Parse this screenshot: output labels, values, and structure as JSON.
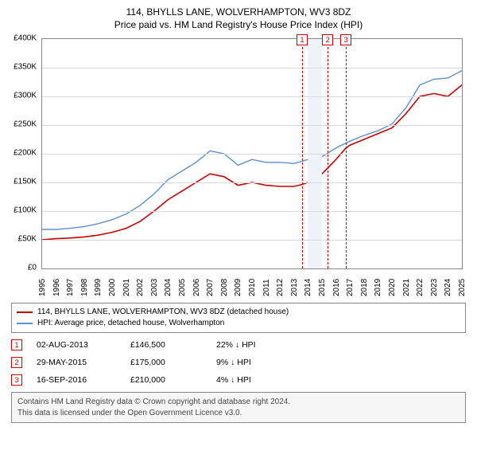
{
  "title": {
    "line1": "114, BHYLLS LANE, WOLVERHAMPTON, WV3 8DZ",
    "line2": "Price paid vs. HM Land Registry's House Price Index (HPI)"
  },
  "chart": {
    "type": "line",
    "background_color": "#ffffff",
    "grid_color": "#d9d9d9",
    "border_color": "#888888",
    "x": {
      "min": 1995,
      "max": 2025,
      "tick_step": 1,
      "label_fontsize": 10
    },
    "y": {
      "min": 0,
      "max": 400000,
      "tick_step": 50000,
      "label_prefix": "£",
      "label_suffix": "K",
      "label_fontsize": 10
    },
    "year_band": {
      "start": 2014,
      "end": 2015,
      "fill": "#eef3fa"
    },
    "event_markers": [
      {
        "id": "1",
        "year": 2013.58
      },
      {
        "id": "2",
        "year": 2015.41
      },
      {
        "id": "3",
        "year": 2016.71
      }
    ],
    "marker_style": {
      "border_color": "#cc0000",
      "text_color": "#cc0000",
      "dash_color": "#cc0000"
    },
    "series": [
      {
        "name": "price_paid",
        "label": "114, BHYLLS LANE, WOLVERHAMPTON, WV3 8DZ (detached house)",
        "color": "#cc0000",
        "line_width": 1.6,
        "points": [
          [
            1995,
            50000
          ],
          [
            1996,
            52000
          ],
          [
            1997,
            53000
          ],
          [
            1998,
            55000
          ],
          [
            1999,
            58000
          ],
          [
            2000,
            63000
          ],
          [
            2001,
            70000
          ],
          [
            2002,
            82000
          ],
          [
            2003,
            100000
          ],
          [
            2004,
            120000
          ],
          [
            2005,
            135000
          ],
          [
            2006,
            150000
          ],
          [
            2007,
            165000
          ],
          [
            2008,
            160000
          ],
          [
            2009,
            145000
          ],
          [
            2010,
            150000
          ],
          [
            2011,
            145000
          ],
          [
            2012,
            143000
          ],
          [
            2013,
            143000
          ],
          [
            2013.58,
            146500
          ],
          [
            2014,
            150000
          ],
          [
            2015,
            165000
          ],
          [
            2015.41,
            175000
          ],
          [
            2016,
            190000
          ],
          [
            2016.71,
            210000
          ],
          [
            2017,
            215000
          ],
          [
            2018,
            225000
          ],
          [
            2019,
            235000
          ],
          [
            2020,
            245000
          ],
          [
            2021,
            270000
          ],
          [
            2022,
            300000
          ],
          [
            2023,
            305000
          ],
          [
            2024,
            300000
          ],
          [
            2025,
            320000
          ]
        ]
      },
      {
        "name": "hpi",
        "label": "HPI: Average price, detached house, Wolverhampton",
        "color": "#5b8fd6",
        "line_width": 1.4,
        "points": [
          [
            1995,
            68000
          ],
          [
            1996,
            68000
          ],
          [
            1997,
            70000
          ],
          [
            1998,
            73000
          ],
          [
            1999,
            78000
          ],
          [
            2000,
            85000
          ],
          [
            2001,
            95000
          ],
          [
            2002,
            110000
          ],
          [
            2003,
            130000
          ],
          [
            2004,
            155000
          ],
          [
            2005,
            170000
          ],
          [
            2006,
            185000
          ],
          [
            2007,
            205000
          ],
          [
            2008,
            200000
          ],
          [
            2009,
            180000
          ],
          [
            2010,
            190000
          ],
          [
            2011,
            185000
          ],
          [
            2012,
            185000
          ],
          [
            2013,
            183000
          ],
          [
            2014,
            190000
          ],
          [
            2015,
            195000
          ],
          [
            2016,
            210000
          ],
          [
            2017,
            222000
          ],
          [
            2018,
            232000
          ],
          [
            2019,
            240000
          ],
          [
            2020,
            252000
          ],
          [
            2021,
            280000
          ],
          [
            2022,
            320000
          ],
          [
            2023,
            330000
          ],
          [
            2024,
            332000
          ],
          [
            2025,
            345000
          ]
        ]
      }
    ]
  },
  "legend": {
    "items": [
      {
        "color": "#cc0000",
        "label": "114, BHYLLS LANE, WOLVERHAMPTON, WV3 8DZ (detached house)"
      },
      {
        "color": "#5b8fd6",
        "label": "HPI: Average price, detached house, Wolverhampton"
      }
    ]
  },
  "events": [
    {
      "id": "1",
      "date": "02-AUG-2013",
      "price": "£146,500",
      "diff": "22% ↓ HPI"
    },
    {
      "id": "2",
      "date": "29-MAY-2015",
      "price": "£175,000",
      "diff": "9% ↓ HPI"
    },
    {
      "id": "3",
      "date": "16-SEP-2016",
      "price": "£210,000",
      "diff": "4% ↓ HPI"
    }
  ],
  "attribution": {
    "line1": "Contains HM Land Registry data © Crown copyright and database right 2024.",
    "line2": "This data is licensed under the Open Government Licence v3.0."
  }
}
